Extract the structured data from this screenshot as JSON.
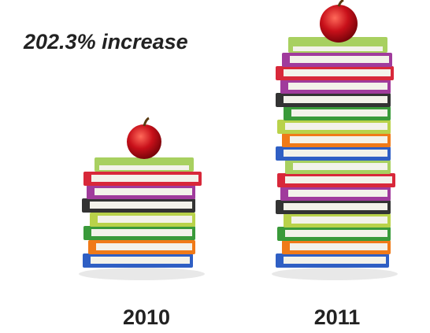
{
  "headline": "202.3% increase",
  "stacks": [
    {
      "label": "2010"
    },
    {
      "label": "2011"
    }
  ]
}
